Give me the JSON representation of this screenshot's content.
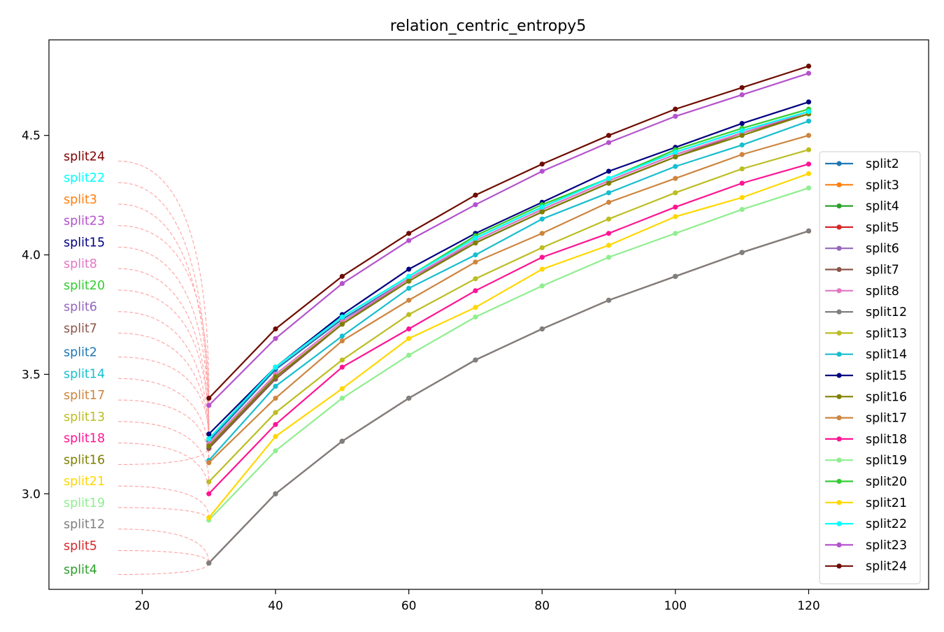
{
  "chart_data": {
    "type": "line",
    "title": "relation_centric_entropy5",
    "xlabel": "",
    "ylabel": "",
    "xlim": [
      6,
      138
    ],
    "ylim": [
      2.6,
      4.9
    ],
    "xticks": [
      20,
      40,
      60,
      80,
      100,
      120
    ],
    "yticks": [
      3.0,
      3.5,
      4.0,
      4.5
    ],
    "ytick_labels": [
      "3.0",
      "3.5",
      "4.0",
      "4.5"
    ],
    "grid": false,
    "legend_position": "center-right",
    "x": [
      30,
      40,
      50,
      60,
      70,
      80,
      90,
      100,
      110,
      120
    ],
    "series": [
      {
        "name": "split2",
        "color": "#1f77b4",
        "values": [
          3.22,
          3.52,
          3.73,
          3.9,
          4.06,
          4.19,
          4.31,
          4.42,
          4.51,
          4.6
        ]
      },
      {
        "name": "split3",
        "color": "#ff7f0e",
        "values": [
          3.23,
          3.53,
          3.74,
          3.91,
          4.07,
          4.2,
          4.32,
          4.43,
          4.52,
          4.6
        ]
      },
      {
        "name": "split4",
        "color": "#2ca02c",
        "values": [
          2.71,
          3.0,
          3.22,
          3.4,
          3.56,
          3.69,
          3.81,
          3.91,
          4.01,
          4.1
        ]
      },
      {
        "name": "split5",
        "color": "#d62728",
        "values": [
          2.71,
          3.0,
          3.22,
          3.4,
          3.56,
          3.69,
          3.81,
          3.91,
          4.01,
          4.1
        ]
      },
      {
        "name": "split6",
        "color": "#9467bd",
        "values": [
          3.19,
          3.49,
          3.71,
          3.9,
          4.05,
          4.18,
          4.3,
          4.41,
          4.51,
          4.59
        ]
      },
      {
        "name": "split7",
        "color": "#8c564b",
        "values": [
          3.19,
          3.48,
          3.71,
          3.89,
          4.05,
          4.18,
          4.3,
          4.41,
          4.51,
          4.59
        ]
      },
      {
        "name": "split8",
        "color": "#e377c2",
        "values": [
          3.21,
          3.5,
          3.72,
          3.9,
          4.06,
          4.19,
          4.31,
          4.42,
          4.51,
          4.6
        ]
      },
      {
        "name": "split12",
        "color": "#7f7f7f",
        "values": [
          2.71,
          3.0,
          3.22,
          3.4,
          3.56,
          3.69,
          3.81,
          3.91,
          4.01,
          4.1
        ]
      },
      {
        "name": "split13",
        "color": "#bcbd22",
        "values": [
          3.05,
          3.34,
          3.56,
          3.75,
          3.9,
          4.03,
          4.15,
          4.26,
          4.36,
          4.44
        ]
      },
      {
        "name": "split14",
        "color": "#17becf",
        "values": [
          3.14,
          3.45,
          3.66,
          3.86,
          4.0,
          4.15,
          4.26,
          4.37,
          4.46,
          4.56
        ]
      },
      {
        "name": "split15",
        "color": "#000080",
        "values": [
          3.25,
          3.53,
          3.75,
          3.94,
          4.09,
          4.22,
          4.35,
          4.45,
          4.55,
          4.64
        ]
      },
      {
        "name": "split16",
        "color": "#808000",
        "values": [
          3.2,
          3.49,
          3.71,
          3.89,
          4.05,
          4.18,
          4.3,
          4.41,
          4.5,
          4.59
        ]
      },
      {
        "name": "split17",
        "color": "#cd853f",
        "values": [
          3.13,
          3.4,
          3.64,
          3.81,
          3.97,
          4.09,
          4.22,
          4.32,
          4.42,
          4.5
        ]
      },
      {
        "name": "split18",
        "color": "#ff1493",
        "values": [
          3.0,
          3.29,
          3.53,
          3.69,
          3.85,
          3.99,
          4.09,
          4.2,
          4.3,
          4.38
        ]
      },
      {
        "name": "split19",
        "color": "#90ee90",
        "values": [
          2.89,
          3.18,
          3.4,
          3.58,
          3.74,
          3.87,
          3.99,
          4.09,
          4.19,
          4.28
        ]
      },
      {
        "name": "split20",
        "color": "#32cd32",
        "values": [
          3.23,
          3.53,
          3.74,
          3.91,
          4.08,
          4.21,
          4.32,
          4.44,
          4.53,
          4.61
        ]
      },
      {
        "name": "split21",
        "color": "#ffd700",
        "values": [
          2.9,
          3.24,
          3.44,
          3.65,
          3.78,
          3.94,
          4.04,
          4.16,
          4.24,
          4.34
        ]
      },
      {
        "name": "split22",
        "color": "#00ffff",
        "values": [
          3.23,
          3.53,
          3.74,
          3.91,
          4.07,
          4.2,
          4.32,
          4.43,
          4.52,
          4.6
        ]
      },
      {
        "name": "split23",
        "color": "#b452cd",
        "values": [
          3.37,
          3.65,
          3.88,
          4.06,
          4.21,
          4.35,
          4.47,
          4.58,
          4.67,
          4.76
        ]
      },
      {
        "name": "split24",
        "color": "#6e0c00",
        "values": [
          3.4,
          3.69,
          3.91,
          4.09,
          4.25,
          4.38,
          4.5,
          4.61,
          4.7,
          4.79
        ]
      }
    ],
    "annotations": [
      {
        "text": "split24",
        "color": "#800000",
        "label_y": 4.41,
        "target_x": 30,
        "target_y": 3.4
      },
      {
        "text": "split22",
        "color": "#00ffff",
        "label_y": 4.32,
        "target_x": 30,
        "target_y": 3.23
      },
      {
        "text": "split3",
        "color": "#ff7f0e",
        "label_y": 4.23,
        "target_x": 30,
        "target_y": 3.23
      },
      {
        "text": "split23",
        "color": "#b452cd",
        "label_y": 4.14,
        "target_x": 30,
        "target_y": 3.37
      },
      {
        "text": "split15",
        "color": "#000080",
        "label_y": 4.05,
        "target_x": 30,
        "target_y": 3.25
      },
      {
        "text": "split8",
        "color": "#e377c2",
        "label_y": 3.96,
        "target_x": 30,
        "target_y": 3.21
      },
      {
        "text": "split20",
        "color": "#32cd32",
        "label_y": 3.87,
        "target_x": 30,
        "target_y": 3.23
      },
      {
        "text": "split6",
        "color": "#9467bd",
        "label_y": 3.78,
        "target_x": 30,
        "target_y": 3.19
      },
      {
        "text": "split7",
        "color": "#8c564b",
        "label_y": 3.69,
        "target_x": 30,
        "target_y": 3.19
      },
      {
        "text": "split2",
        "color": "#1f77b4",
        "label_y": 3.59,
        "target_x": 30,
        "target_y": 3.22
      },
      {
        "text": "split14",
        "color": "#17becf",
        "label_y": 3.5,
        "target_x": 30,
        "target_y": 3.14
      },
      {
        "text": "split17",
        "color": "#cd853f",
        "label_y": 3.41,
        "target_x": 30,
        "target_y": 3.13
      },
      {
        "text": "split13",
        "color": "#bcbd22",
        "label_y": 3.32,
        "target_x": 30,
        "target_y": 3.05
      },
      {
        "text": "split18",
        "color": "#ff1493",
        "label_y": 3.23,
        "target_x": 30,
        "target_y": 3.0
      },
      {
        "text": "split16",
        "color": "#808000",
        "label_y": 3.14,
        "target_x": 30,
        "target_y": 3.2
      },
      {
        "text": "split21",
        "color": "#ffd700",
        "label_y": 3.05,
        "target_x": 30,
        "target_y": 2.9
      },
      {
        "text": "split19",
        "color": "#90ee90",
        "label_y": 2.96,
        "target_x": 30,
        "target_y": 2.89
      },
      {
        "text": "split12",
        "color": "#7f7f7f",
        "label_y": 2.87,
        "target_x": 30,
        "target_y": 2.71
      },
      {
        "text": "split5",
        "color": "#d62728",
        "label_y": 2.78,
        "target_x": 30,
        "target_y": 2.71
      },
      {
        "text": "split4",
        "color": "#2ca02c",
        "label_y": 2.68,
        "target_x": 30,
        "target_y": 2.71
      }
    ]
  }
}
